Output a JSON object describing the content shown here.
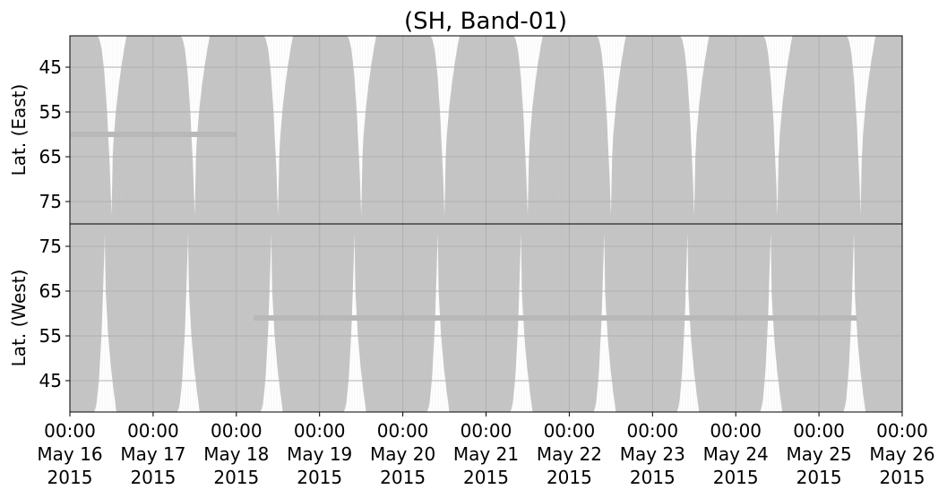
{
  "chart_data": {
    "type": "area",
    "title": "(SH, Band-01)",
    "series_color": "#c0c0c0",
    "grid": true,
    "x_ticks": [
      {
        "time": "00:00",
        "date": "May 16",
        "year": "2015"
      },
      {
        "time": "00:00",
        "date": "May 17",
        "year": "2015"
      },
      {
        "time": "00:00",
        "date": "May 18",
        "year": "2015"
      },
      {
        "time": "00:00",
        "date": "May 19",
        "year": "2015"
      },
      {
        "time": "00:00",
        "date": "May 20",
        "year": "2015"
      },
      {
        "time": "00:00",
        "date": "May 21",
        "year": "2015"
      },
      {
        "time": "00:00",
        "date": "May 22",
        "year": "2015"
      },
      {
        "time": "00:00",
        "date": "May 23",
        "year": "2015"
      },
      {
        "time": "00:00",
        "date": "May 24",
        "year": "2015"
      },
      {
        "time": "00:00",
        "date": "May 25",
        "year": "2015"
      },
      {
        "time": "00:00",
        "date": "May 26",
        "year": "2015"
      }
    ],
    "xlim": [
      "2015-05-16 00:00",
      "2015-05-26 00:00"
    ],
    "panels": [
      {
        "ylabel": "Lat. (East)",
        "yticks": [
          "45",
          "55",
          "65",
          "75"
        ],
        "ylim": [
          80,
          38
        ],
        "band_lat": 60,
        "band_x": [
          "2015-05-16 00:00",
          "2015-05-18 00:00"
        ],
        "coverage_min_lat": [
          78,
          78,
          78,
          78,
          78,
          78,
          78,
          78,
          78,
          78
        ]
      },
      {
        "ylabel": "Lat. (West)",
        "yticks": [
          "75",
          "65",
          "55",
          "45"
        ],
        "ylim": [
          80,
          38
        ],
        "band_lat": 59,
        "band_x": [
          "2015-05-18 05:00",
          "2015-05-25 11:00"
        ],
        "coverage_min_lat": [
          78,
          78,
          78,
          78,
          78,
          78,
          78,
          78,
          78,
          78
        ]
      }
    ]
  }
}
